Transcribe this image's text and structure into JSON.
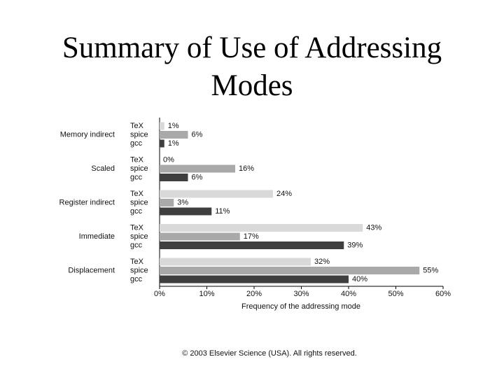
{
  "chart_data": {
    "type": "grouped-hbar",
    "title": "Summary of Use of Addressing Modes",
    "categories": [
      "Memory indirect",
      "Scaled",
      "Register indirect",
      "Immediate",
      "Displacement"
    ],
    "series": [
      {
        "name": "TeX",
        "color": "#d9d9d9",
        "values": [
          1,
          0,
          24,
          43,
          32
        ],
        "value_labels": [
          "1%",
          "0%",
          "24%",
          "43%",
          "32%"
        ]
      },
      {
        "name": "spice",
        "color": "#a9a9a9",
        "values": [
          6,
          16,
          3,
          17,
          55
        ],
        "value_labels": [
          "6%",
          "16%",
          "3%",
          "17%",
          "55%"
        ]
      },
      {
        "name": "gcc",
        "color": "#3f3f3f",
        "values": [
          1,
          6,
          11,
          39,
          40
        ],
        "value_labels": [
          "1%",
          "6%",
          "11%",
          "39%",
          "40%"
        ]
      }
    ],
    "xlim": [
      0,
      60
    ],
    "xticks": [
      {
        "value": 0,
        "label": "0%"
      },
      {
        "value": 10,
        "label": "10%"
      },
      {
        "value": 20,
        "label": "20%"
      },
      {
        "value": 30,
        "label": "30%"
      },
      {
        "value": 40,
        "label": "40%"
      },
      {
        "value": 50,
        "label": "50%"
      },
      {
        "value": 60,
        "label": "60%"
      }
    ],
    "xlabel": "Frequency of the addressing mode",
    "copyright": "© 2003 Elsevier Science (USA). All rights reserved."
  }
}
